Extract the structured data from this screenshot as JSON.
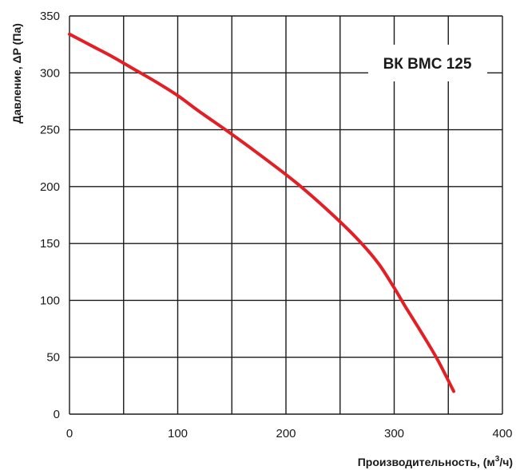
{
  "chart_data": {
    "type": "line",
    "title": "ВК ВМС 125",
    "xlabel": "Производительность, (м³/ч)",
    "xlabel_main": "Производительность, (м",
    "xlabel_sup": "3",
    "xlabel_end": "/ч)",
    "ylabel": "Давление, ΔP (Па)",
    "xlim": [
      0,
      400
    ],
    "ylim": [
      0,
      350
    ],
    "xticks": [
      0,
      100,
      200,
      300,
      400
    ],
    "yticks": [
      0,
      50,
      100,
      150,
      200,
      250,
      300,
      350
    ],
    "x_gridlines": [
      0,
      50,
      100,
      150,
      200,
      250,
      300,
      350,
      400
    ],
    "y_gridlines": [
      0,
      50,
      100,
      150,
      200,
      250,
      300,
      350
    ],
    "grid": true,
    "series": [
      {
        "color": "#e31e24",
        "x": [
          0,
          20,
          40,
          60,
          80,
          100,
          120,
          150,
          180,
          210,
          240,
          265,
          285,
          300,
          310,
          325,
          340,
          355
        ],
        "y": [
          334,
          324,
          314,
          303,
          292,
          280,
          266,
          246,
          225,
          203,
          178,
          155,
          133,
          111,
          95,
          72,
          48,
          20
        ]
      }
    ]
  }
}
